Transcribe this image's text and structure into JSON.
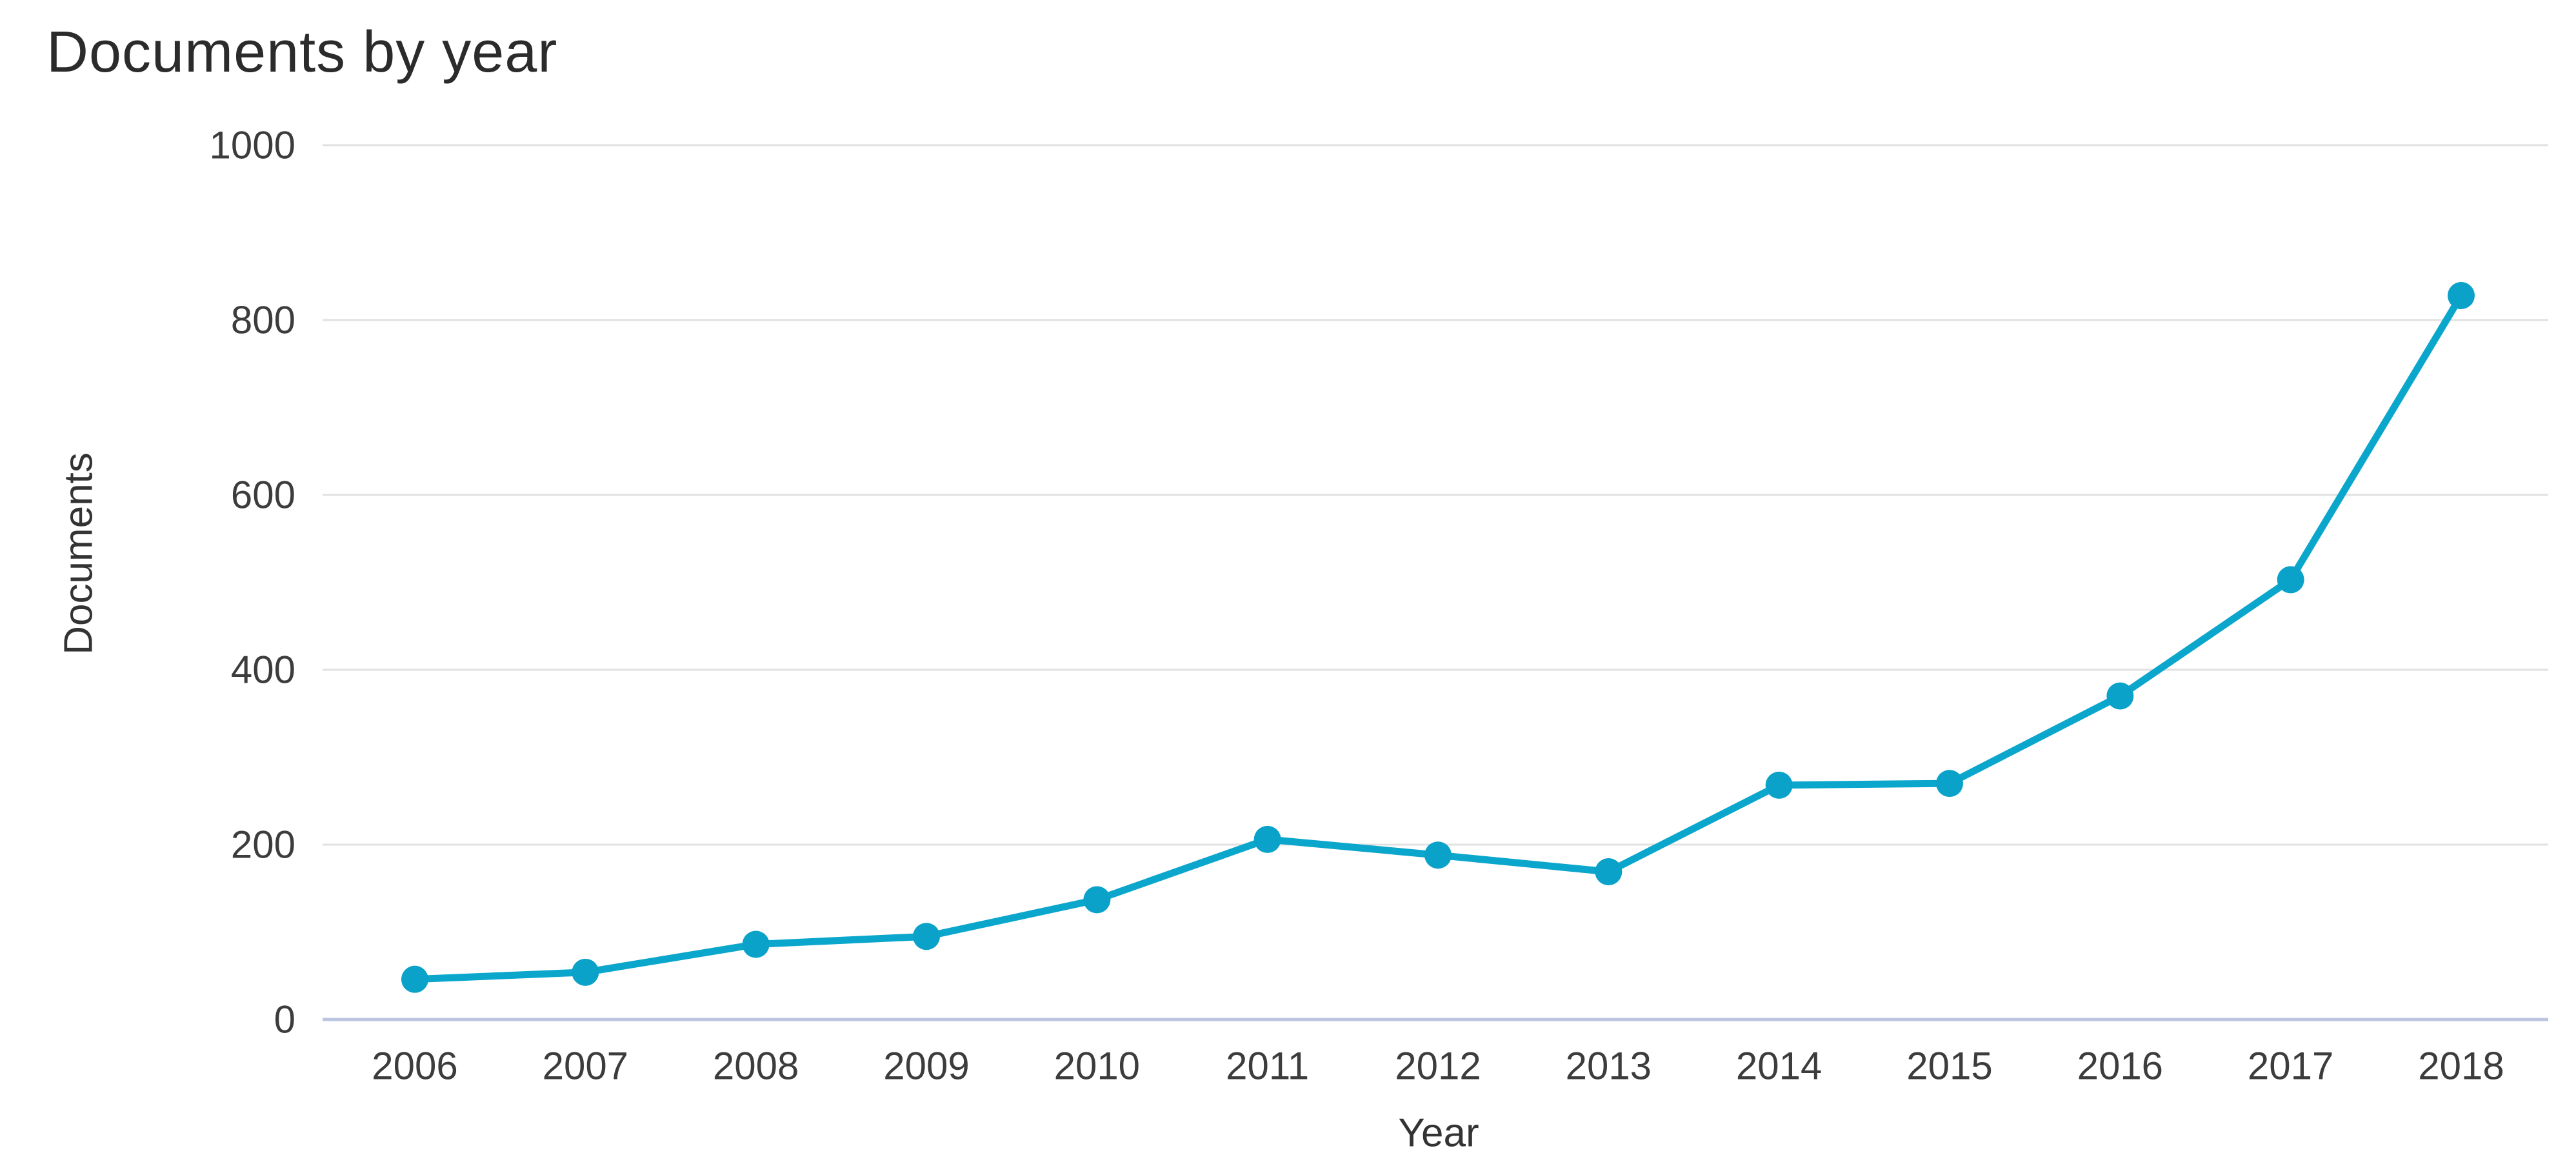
{
  "chart_data": {
    "type": "line",
    "title": "Documents by year",
    "xlabel": "Year",
    "ylabel": "Documents",
    "categories": [
      "2006",
      "2007",
      "2008",
      "2009",
      "2010",
      "2011",
      "2012",
      "2013",
      "2014",
      "2015",
      "2016",
      "2017",
      "2018"
    ],
    "series": [
      {
        "name": "Documents",
        "values": [
          46,
          54,
          86,
          95,
          137,
          206,
          188,
          169,
          268,
          270,
          370,
          503,
          828
        ]
      }
    ],
    "ylim": [
      0,
      1000
    ],
    "yticks": [
      0,
      200,
      400,
      600,
      800,
      1000
    ],
    "grid": true,
    "legend": "none",
    "colors": {
      "line": "#0ba6cc",
      "marker": "#0aa2c9",
      "gridline": "#e1e1e1",
      "baseline": "#bcc5e0",
      "tick_text": "#3c3c3c",
      "title_text": "#2b2b2b",
      "axis_title_text": "#333333",
      "background": "#ffffff"
    }
  }
}
